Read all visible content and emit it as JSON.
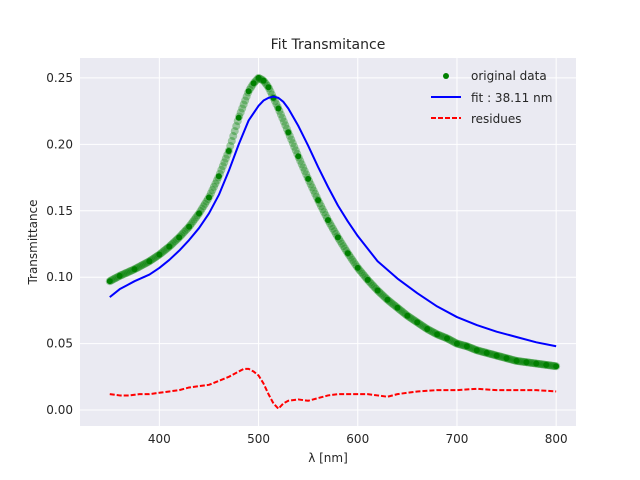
{
  "chart_data": {
    "type": "line",
    "title": "Fit Transmitance",
    "xlabel": "λ [nm]",
    "ylabel": "Transmittance",
    "xlim": [
      320,
      820
    ],
    "ylim": [
      -0.012,
      0.265
    ],
    "xticks": [
      400,
      500,
      600,
      700,
      800
    ],
    "yticks": [
      0.0,
      0.05,
      0.1,
      0.15,
      0.2,
      0.25
    ],
    "xtick_labels": [
      "400",
      "500",
      "600",
      "700",
      "800"
    ],
    "ytick_labels": [
      "0.00",
      "0.05",
      "0.10",
      "0.15",
      "0.20",
      "0.25"
    ],
    "grid": true,
    "background": "#eaeaf2",
    "legend_position": "top-right",
    "series": [
      {
        "name": "original data",
        "style": "markers",
        "color": "#008000",
        "x": [
          350,
          360,
          375,
          390,
          400,
          410,
          420,
          430,
          440,
          450,
          460,
          470,
          480,
          490,
          495,
          500,
          505,
          510,
          515,
          520,
          530,
          540,
          550,
          560,
          570,
          580,
          590,
          600,
          610,
          620,
          630,
          640,
          650,
          660,
          670,
          680,
          690,
          700,
          710,
          720,
          730,
          740,
          750,
          760,
          770,
          780,
          790,
          800
        ],
        "y": [
          0.097,
          0.101,
          0.106,
          0.112,
          0.117,
          0.123,
          0.13,
          0.138,
          0.148,
          0.16,
          0.176,
          0.195,
          0.22,
          0.24,
          0.246,
          0.25,
          0.248,
          0.243,
          0.235,
          0.227,
          0.209,
          0.191,
          0.174,
          0.158,
          0.143,
          0.13,
          0.118,
          0.107,
          0.098,
          0.09,
          0.083,
          0.077,
          0.071,
          0.066,
          0.061,
          0.057,
          0.054,
          0.05,
          0.048,
          0.045,
          0.043,
          0.041,
          0.039,
          0.037,
          0.036,
          0.035,
          0.034,
          0.033
        ]
      },
      {
        "name": "fit : 38.11 nm",
        "style": "solid",
        "color": "#0000ff",
        "x": [
          350,
          360,
          375,
          390,
          400,
          410,
          420,
          430,
          440,
          450,
          460,
          470,
          480,
          490,
          500,
          505,
          510,
          515,
          520,
          525,
          530,
          540,
          550,
          560,
          570,
          580,
          590,
          600,
          620,
          640,
          660,
          680,
          700,
          720,
          740,
          760,
          780,
          800
        ],
        "y": [
          0.085,
          0.091,
          0.097,
          0.102,
          0.107,
          0.113,
          0.12,
          0.128,
          0.137,
          0.148,
          0.162,
          0.18,
          0.2,
          0.218,
          0.229,
          0.233,
          0.235,
          0.236,
          0.235,
          0.232,
          0.227,
          0.214,
          0.199,
          0.183,
          0.168,
          0.154,
          0.142,
          0.131,
          0.112,
          0.099,
          0.088,
          0.078,
          0.07,
          0.064,
          0.059,
          0.055,
          0.051,
          0.048
        ]
      },
      {
        "name": "residues",
        "style": "dashed",
        "color": "#ff0000",
        "x": [
          350,
          360,
          370,
          380,
          390,
          400,
          410,
          420,
          430,
          440,
          450,
          460,
          470,
          480,
          485,
          490,
          495,
          500,
          505,
          510,
          515,
          520,
          525,
          530,
          540,
          550,
          560,
          570,
          580,
          590,
          600,
          610,
          620,
          630,
          640,
          650,
          660,
          680,
          700,
          720,
          740,
          760,
          780,
          800
        ],
        "y": [
          0.012,
          0.011,
          0.011,
          0.012,
          0.012,
          0.013,
          0.014,
          0.015,
          0.017,
          0.018,
          0.019,
          0.022,
          0.025,
          0.029,
          0.031,
          0.031,
          0.029,
          0.026,
          0.02,
          0.012,
          0.005,
          0.001,
          0.005,
          0.007,
          0.008,
          0.007,
          0.009,
          0.011,
          0.012,
          0.012,
          0.012,
          0.012,
          0.011,
          0.01,
          0.012,
          0.013,
          0.014,
          0.015,
          0.015,
          0.016,
          0.015,
          0.015,
          0.015,
          0.014
        ]
      }
    ]
  }
}
